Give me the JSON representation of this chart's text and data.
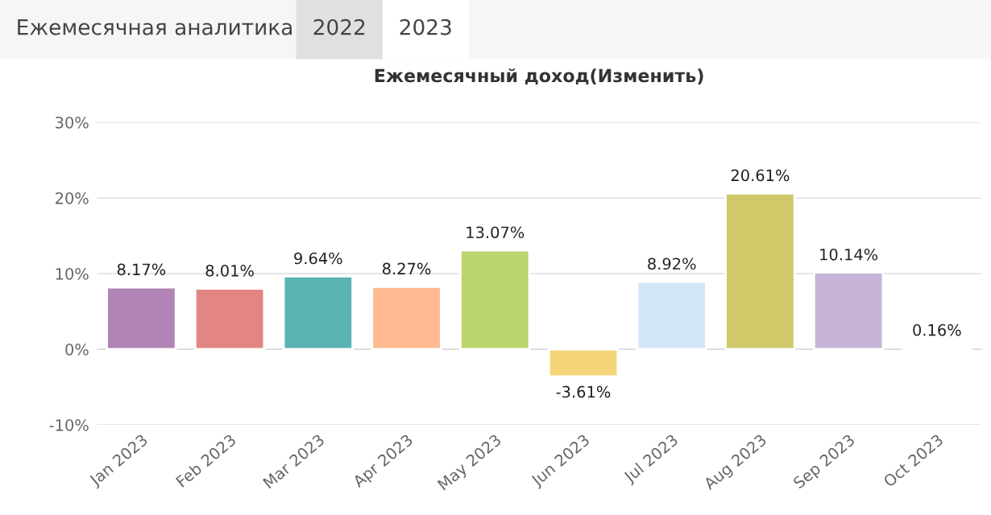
{
  "chart_data": {
    "type": "bar",
    "title": "Ежемесячный доход(Изменить)",
    "annotations": [
      "Ежемесячная аналитика",
      "2022",
      "2023"
    ],
    "categories": [
      "Jan 2023",
      "Feb 2023",
      "Mar 2023",
      "Apr 2023",
      "May 2023",
      "Jun 2023",
      "Jul 2023",
      "Aug 2023",
      "Sep 2023",
      "Oct 2023"
    ],
    "values": [
      8.17,
      8.01,
      9.64,
      8.27,
      13.07,
      -3.61,
      8.92,
      20.61,
      10.14,
      0.16
    ],
    "value_labels": [
      "8.17%",
      "8.01%",
      "9.64%",
      "8.27%",
      "13.07%",
      "-3.61%",
      "8.92%",
      "20.61%",
      "10.14%",
      "0.16%"
    ],
    "colors": [
      "#b084b4",
      "#e38683",
      "#5ab3b2",
      "#fdba93",
      "#bcd56c",
      "#f6d57a",
      "#d2e6f8",
      "#d0c96a",
      "#c6b3d7",
      "#8fbf6a"
    ],
    "ylim": [
      -10,
      30
    ],
    "yticks": [
      {
        "value": -10,
        "label": "-10%"
      },
      {
        "value": 0,
        "label": "0%"
      },
      {
        "value": 10,
        "label": "10%"
      },
      {
        "value": 20,
        "label": "20%"
      },
      {
        "value": 30,
        "label": "30%"
      }
    ],
    "grid": "y",
    "legend": false
  }
}
